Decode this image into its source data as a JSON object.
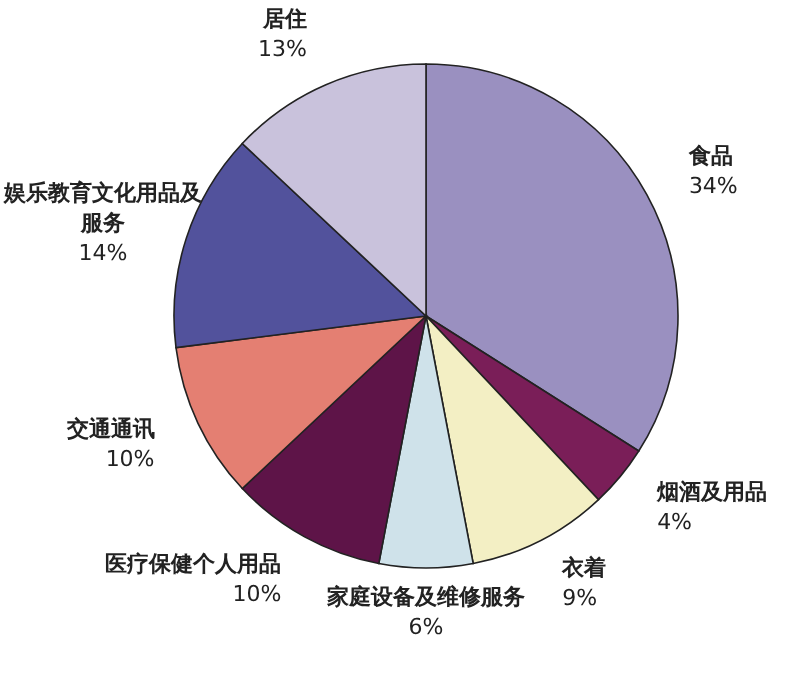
{
  "chart_data": {
    "type": "pie",
    "categories": [
      "食品",
      "烟酒及用品",
      "衣着",
      "家庭设备及维修服务",
      "医疗保健个人用品",
      "交通通讯",
      "娱乐教育文化用品及服务",
      "居住"
    ],
    "values": [
      34,
      4,
      9,
      6,
      10,
      10,
      14,
      13
    ],
    "value_labels": [
      "34%",
      "4%",
      "9%",
      "6%",
      "10%",
      "10%",
      "14%",
      "13%"
    ],
    "colors": [
      "#9a90c0",
      "#7a1e58",
      "#f3efc4",
      "#cfe2ea",
      "#5e1448",
      "#e47f72",
      "#52529c",
      "#c9c2dc"
    ]
  }
}
